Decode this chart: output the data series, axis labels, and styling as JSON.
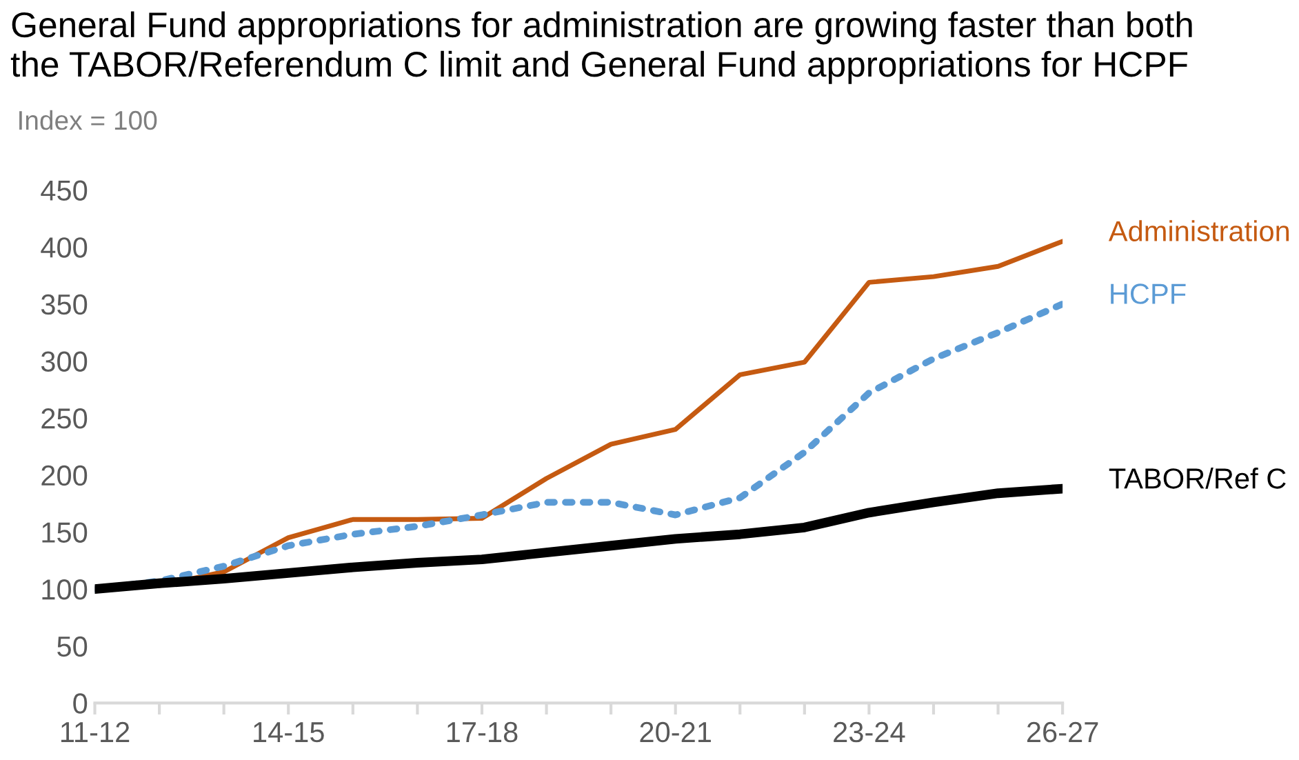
{
  "chart_data": {
    "type": "line",
    "title": "General Fund appropriations for administration are growing faster than both\nthe TABOR/Referendum C limit and General Fund appropriations for HCPF",
    "subtitle": "Index = 100",
    "categories": [
      "11-12",
      null,
      null,
      "14-15",
      null,
      null,
      "17-18",
      null,
      null,
      "20-21",
      null,
      null,
      "23-24",
      null,
      null,
      "26-27"
    ],
    "series": [
      {
        "name": "Administration",
        "color": "#c55a11",
        "line_style": "solid",
        "values": [
          100,
          103,
          115,
          145,
          161,
          161,
          162,
          197,
          227,
          240,
          288,
          299,
          369,
          374,
          383,
          405
        ]
      },
      {
        "name": "HCPF",
        "color": "#5b9bd5",
        "line_style": "dotted",
        "values": [
          100,
          107,
          120,
          138,
          148,
          155,
          165,
          176,
          176,
          165,
          180,
          220,
          272,
          302,
          325,
          350
        ]
      },
      {
        "name": "TABOR/Ref C",
        "color": "#000000",
        "line_style": "solid",
        "values": [
          100,
          105,
          109,
          114,
          119,
          123,
          126,
          132,
          138,
          144,
          148,
          154,
          167,
          176,
          184,
          188
        ]
      }
    ],
    "ylim": [
      0,
      450
    ],
    "yticks": [
      0,
      50,
      100,
      150,
      200,
      250,
      300,
      350,
      400,
      450
    ],
    "grid": false,
    "legend": false,
    "marker": "none"
  }
}
